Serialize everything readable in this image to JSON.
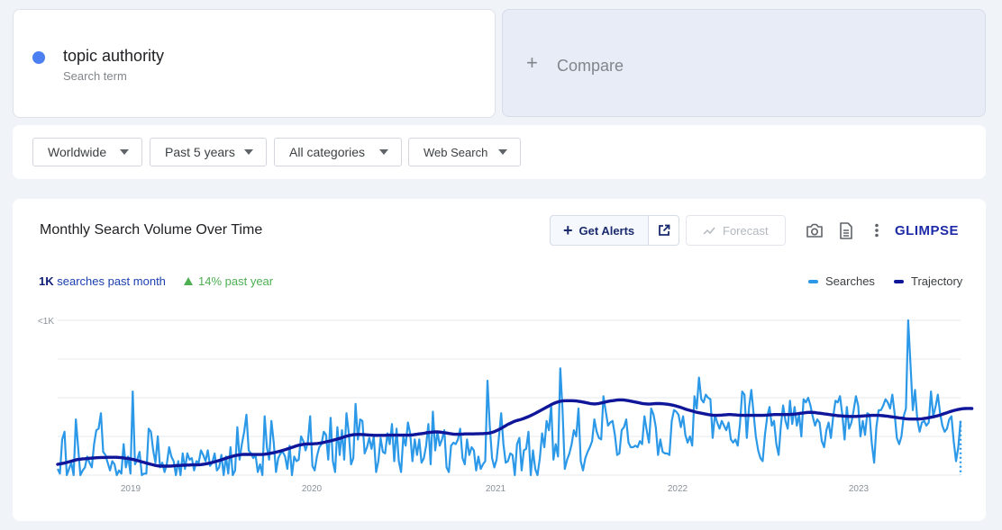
{
  "search_term": {
    "name": "topic authority",
    "subtitle": "Search term",
    "color": "#4c7ff2"
  },
  "compare": {
    "plus": "+",
    "label": "Compare"
  },
  "filters": {
    "region": "Worldwide",
    "period": "Past 5 years",
    "category": "All categories",
    "source": "Web Search"
  },
  "chart_panel": {
    "title": "Monthly Search Volume Over Time",
    "get_alerts_label": "Get Alerts",
    "forecast_label": "Forecast",
    "logo": "GLIMPSE",
    "stat_volume_bold": "1K",
    "stat_volume_rest": " searches past month",
    "stat_growth": "14% past year",
    "legend_searches": "Searches",
    "legend_trajectory": "Trajectory",
    "colors": {
      "searches": "#2b98e8",
      "trajectory": "#0f1699",
      "growth": "#4caf50",
      "grid": "#e6e8eb"
    }
  },
  "chart_data": {
    "type": "line",
    "y_tick_label": "<1K",
    "x_tick_labels": [
      "2019",
      "2020",
      "2021",
      "2022",
      "2023"
    ],
    "ylim": [
      0,
      100
    ],
    "grid": true,
    "legend_position": "top-right",
    "series": [
      {
        "name": "Searches",
        "values": [
          4,
          1,
          23,
          28,
          0,
          4,
          8,
          0,
          36,
          18,
          0,
          3,
          5,
          12,
          8,
          5,
          20,
          29,
          30,
          40,
          15,
          13,
          8,
          3,
          9,
          7,
          0,
          3,
          1,
          20,
          5,
          12,
          1,
          54,
          7,
          10,
          15,
          0,
          1,
          1,
          30,
          28,
          16,
          8,
          25,
          5,
          8,
          2,
          7,
          18,
          12,
          9,
          0,
          9,
          0,
          14,
          4,
          14,
          10,
          11,
          3,
          9,
          8,
          16,
          13,
          9,
          16,
          6,
          8,
          14,
          3,
          5,
          13,
          0,
          12,
          1,
          18,
          0,
          3,
          31,
          10,
          20,
          28,
          39,
          16,
          14,
          11,
          13,
          2,
          7,
          0,
          38,
          18,
          10,
          35,
          21,
          2,
          11,
          14,
          15,
          12,
          4,
          19,
          0,
          12,
          9,
          10,
          25,
          22,
          16,
          21,
          38,
          6,
          3,
          12,
          18,
          20,
          28,
          26,
          10,
          37,
          9,
          2,
          31,
          13,
          29,
          10,
          40,
          27,
          7,
          11,
          46,
          23,
          36,
          35,
          14,
          18,
          24,
          17,
          25,
          2,
          9,
          24,
          15,
          14,
          27,
          20,
          33,
          9,
          30,
          9,
          2,
          25,
          19,
          34,
          27,
          9,
          23,
          13,
          23,
          8,
          11,
          19,
          33,
          7,
          41,
          16,
          28,
          19,
          23,
          29,
          5,
          2,
          19,
          21,
          20,
          23,
          30,
          11,
          7,
          23,
          13,
          18,
          16,
          3,
          12,
          4,
          7,
          9,
          61,
          32,
          11,
          5,
          10,
          24,
          40,
          20,
          8,
          9,
          14,
          13,
          0,
          20,
          24,
          3,
          16,
          17,
          28,
          0,
          16,
          4,
          0,
          11,
          27,
          18,
          35,
          29,
          45,
          10,
          20,
          12,
          69,
          42,
          4,
          10,
          14,
          20,
          29,
          25,
          43,
          9,
          3,
          11,
          15,
          18,
          22,
          36,
          28,
          24,
          23,
          51,
          41,
          32,
          34,
          35,
          26,
          13,
          14,
          29,
          31,
          36,
          21,
          18,
          18,
          19,
          18,
          22,
          20,
          38,
          29,
          21,
          43,
          39,
          31,
          13,
          23,
          15,
          14,
          14,
          13,
          35,
          42,
          41,
          39,
          31,
          38,
          26,
          21,
          25,
          19,
          51,
          43,
          63,
          49,
          47,
          52,
          50,
          49,
          24,
          39,
          34,
          30,
          35,
          32,
          29,
          34,
          23,
          21,
          23,
          19,
          33,
          54,
          52,
          24,
          44,
          55,
          40,
          25,
          16,
          11,
          9,
          26,
          38,
          44,
          32,
          35,
          20,
          13,
          32,
          45,
          35,
          30,
          48,
          33,
          44,
          32,
          39,
          25,
          49,
          47,
          50,
          45,
          38,
          32,
          36,
          34,
          22,
          18,
          29,
          34,
          24,
          38,
          48,
          47,
          51,
          39,
          23,
          44,
          30,
          34,
          42,
          51,
          45,
          25,
          35,
          26,
          40,
          39,
          20,
          8,
          31,
          42,
          42,
          45,
          49,
          47,
          43,
          52,
          40,
          24,
          20,
          25,
          38,
          43,
          100,
          71,
          42,
          55,
          36,
          28,
          34,
          35,
          32,
          34,
          54,
          38,
          44,
          52,
          40,
          32,
          28,
          30,
          36,
          38,
          22,
          9,
          18,
          35
        ]
      },
      {
        "name": "Trajectory",
        "values": [
          7,
          7.2,
          7.5,
          7.8,
          8.2,
          8.6,
          9,
          9.4,
          9.8,
          10.1,
          10.3,
          10.5,
          10.6,
          10.7,
          10.9,
          11,
          11.1,
          11.2,
          11.3,
          11.4,
          11.4,
          11.4,
          11.5,
          11.5,
          11.5,
          11.5,
          11.5,
          11.4,
          11.3,
          11.1,
          10.9,
          10.7,
          10.4,
          10.1,
          9.8,
          9.4,
          9,
          8.6,
          8.2,
          7.8,
          7.4,
          7,
          6.6,
          6.3,
          6,
          5.9,
          5.8,
          5.8,
          5.8,
          5.8,
          5.9,
          6,
          6.1,
          6.2,
          6.3,
          6.4,
          6.4,
          6.5,
          6.5,
          6.6,
          6.6,
          6.6,
          6.7,
          6.8,
          7,
          7.2,
          7.5,
          7.8,
          8.2,
          8.6,
          9,
          9.5,
          9.9,
          10.4,
          10.9,
          11.4,
          11.8,
          12.2,
          12.6,
          12.9,
          13.1,
          13.3,
          13.4,
          13.4,
          13.4,
          13.4,
          13.3,
          13.3,
          13.3,
          13.3,
          13.4,
          13.5,
          13.7,
          13.9,
          14.2,
          14.5,
          14.8,
          15.2,
          15.6,
          16,
          16.4,
          16.9,
          17.4,
          17.9,
          18.4,
          18.9,
          19.3,
          19.6,
          19.9,
          20.1,
          20.2,
          20.2,
          20.2,
          20.3,
          20.4,
          20.6,
          20.8,
          21.1,
          21.5,
          21.8,
          22.1,
          22.5,
          22.9,
          23.3,
          23.7,
          24.2,
          24.7,
          25.1,
          25.5,
          25.8,
          26.1,
          26.2,
          26.3,
          26.3,
          26.2,
          26.1,
          26,
          25.9,
          25.8,
          25.7,
          25.7,
          25.7,
          25.7,
          25.7,
          25.7,
          25.8,
          25.8,
          25.8,
          25.8,
          25.8,
          25.8,
          25.8,
          25.8,
          25.8,
          25.8,
          25.9,
          26,
          26.2,
          26.4,
          26.6,
          26.8,
          27,
          27.3,
          27.5,
          27.7,
          27.8,
          27.9,
          27.9,
          27.8,
          27.6,
          27.4,
          27.2,
          26.9,
          26.7,
          26.5,
          26.4,
          26.4,
          26.4,
          26.5,
          26.6,
          26.6,
          26.6,
          26.6,
          26.6,
          26.7,
          26.7,
          26.8,
          26.8,
          26.9,
          27,
          27.2,
          27.6,
          28.1,
          28.7,
          29.4,
          30.2,
          31.1,
          31.9,
          32.8,
          33.5,
          34.2,
          34.8,
          35.3,
          35.7,
          36.1,
          36.6,
          37.2,
          37.8,
          38.5,
          39.2,
          39.9,
          40.7,
          41.5,
          42.3,
          43.1,
          43.9,
          44.7,
          45.5,
          46.2,
          46.8,
          47.3,
          47.7,
          47.9,
          48.1,
          48.1,
          48.1,
          48.1,
          48,
          47.9,
          47.7,
          47.5,
          47.2,
          46.9,
          46.6,
          46.3,
          46.1,
          46,
          46.1,
          46.3,
          46.6,
          46.9,
          47.3,
          47.6,
          47.9,
          48.1,
          48.3,
          48.5,
          48.6,
          48.6,
          48.5,
          48.3,
          48.1,
          47.8,
          47.5,
          47.2,
          46.9,
          46.6,
          46.3,
          46.1,
          46,
          45.9,
          46,
          46.1,
          46.2,
          46.2,
          46.2,
          46.1,
          46,
          45.8,
          45.6,
          45.3,
          45,
          44.6,
          44.2,
          43.7,
          43.2,
          42.7,
          42.2,
          41.8,
          41.4,
          41,
          40.6,
          40.3,
          40,
          39.7,
          39.4,
          39.1,
          38.9,
          38.7,
          38.6,
          38.6,
          38.7,
          38.8,
          38.9,
          39,
          39.1,
          39.1,
          39,
          38.9,
          38.8,
          38.7,
          38.6,
          38.6,
          38.6,
          38.6,
          38.6,
          38.6,
          38.6,
          38.6,
          38.6,
          38.6,
          38.7,
          38.8,
          38.9,
          39,
          39.1,
          39.1,
          39.1,
          39.1,
          39.1,
          39.1,
          39.1,
          39.2,
          39.3,
          39.4,
          39.6,
          39.8,
          40,
          40.2,
          40.4,
          40.5,
          40.6,
          40.5,
          40.4,
          40.2,
          40,
          39.8,
          39.6,
          39.4,
          39.2,
          39,
          38.8,
          38.6,
          38.4,
          38.3,
          38.2,
          38.1,
          38,
          37.9,
          37.9,
          37.9,
          37.9,
          38,
          38.1,
          38.2,
          38.3,
          38.4,
          38.5,
          38.6,
          38.6,
          38.6,
          38.6,
          38.5,
          38.4,
          38.2,
          38,
          37.8,
          37.6,
          37.4,
          37.2,
          37,
          36.8,
          36.6,
          36.4,
          36.3,
          36.2,
          36.2,
          36.2,
          36.2,
          36.3,
          36.4,
          36.6,
          36.8,
          37.1,
          37.4,
          37.7,
          38,
          38.4,
          38.8,
          39.3,
          39.8,
          40.3,
          40.8,
          41.3,
          41.7,
          42.1,
          42.4,
          42.7,
          42.9,
          43,
          43.1,
          43.1,
          43
        ]
      }
    ]
  }
}
